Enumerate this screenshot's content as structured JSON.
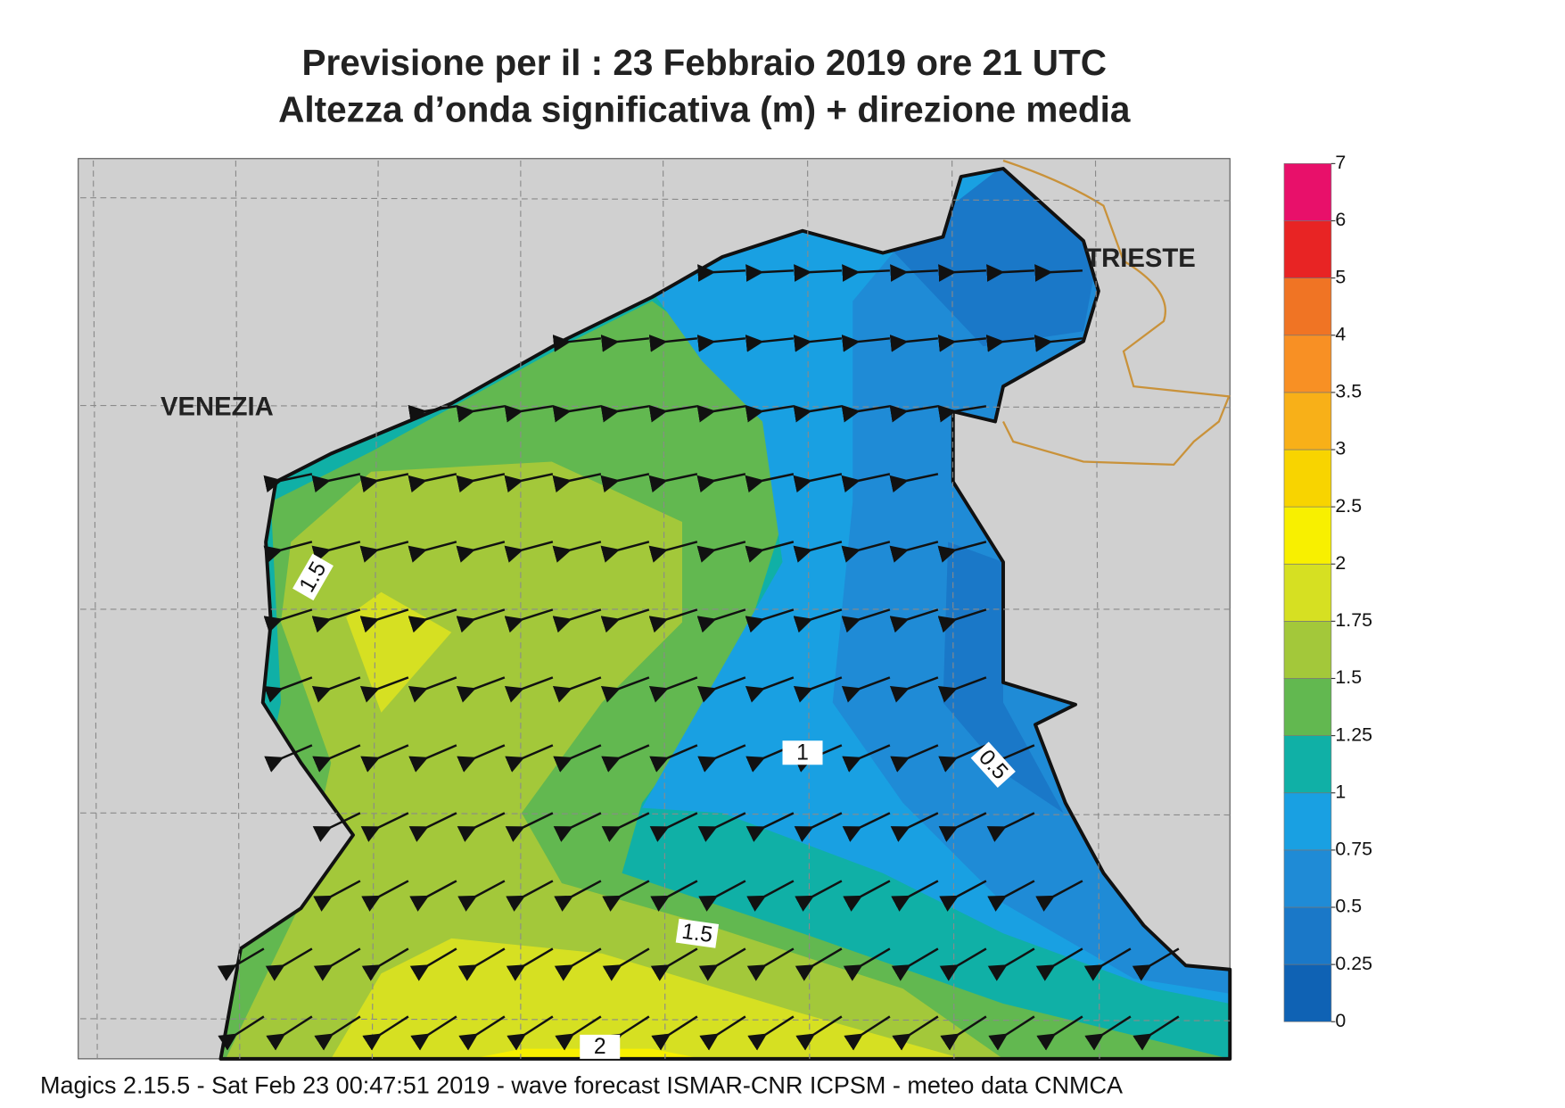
{
  "title": [
    "Previsione per il  :  23  Febbraio 2019   ore 21 UTC",
    "Altezza d’onda significativa (m) + direzione media"
  ],
  "places": [
    "VENEZIA",
    "TRIESTE"
  ],
  "contour_labels": [
    "1.5",
    "1",
    "0.5",
    "1.5",
    "2"
  ],
  "colorbar": {
    "levels": [
      0,
      0.25,
      0.5,
      0.75,
      1,
      1.25,
      1.5,
      1.75,
      2,
      2.5,
      3,
      3.5,
      4,
      5,
      6,
      7
    ],
    "colors": [
      "#0f62b4",
      "#1a78c8",
      "#1f8bd6",
      "#19a0e2",
      "#10b0a6",
      "#62b850",
      "#a3c83a",
      "#d6e022",
      "#f8f000",
      "#f8d400",
      "#f8b018",
      "#f89024",
      "#f07424",
      "#e82424",
      "#e8106a"
    ]
  },
  "footer": "Magics 2.15.5 - Sat Feb 23 00:47:51 2019 - wave forecast  ISMAR-CNR  ICPSM - meteo data   CNMCA"
}
